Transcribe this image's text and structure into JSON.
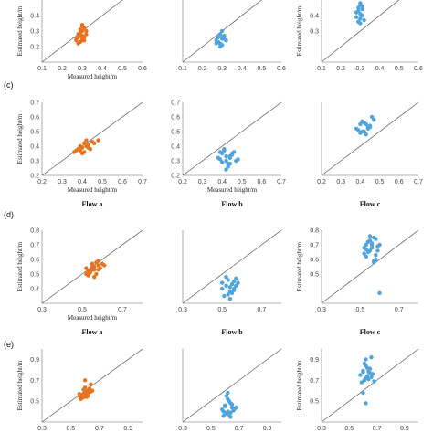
{
  "colors": {
    "flow_a": "#E8731E",
    "flow_b": "#4FA3DE",
    "flow_c": "#4FA3DE",
    "line": "#555555",
    "axis": "#9a9a9a"
  },
  "rows": [
    {
      "label": "",
      "show_flow_labels": false
    },
    {
      "label": "(c)",
      "show_flow_labels": true
    },
    {
      "label": "(d)",
      "show_flow_labels": true
    },
    {
      "label": "(e)",
      "show_flow_labels": false
    }
  ],
  "axis_text": {
    "xlabel": "Measured height/m",
    "ylabel": "Estimated height/m"
  },
  "flow_labels": [
    "Flow a",
    "Flow b",
    "Flow c"
  ],
  "chart_data": [
    {
      "type": "scatter",
      "row": 0,
      "col": 0,
      "xlim": [
        0.1,
        0.6
      ],
      "ylim": [
        0.1,
        0.5
      ],
      "xticks": [
        "0.1",
        "0.2",
        "0.3",
        "0.4",
        "0.5",
        "0.6"
      ],
      "yticks": [
        "0.2",
        "0.3",
        "0.4"
      ],
      "show_xlabel": true,
      "show_ylabel": true,
      "series": [
        {
          "color_key": "flow_a",
          "x": [
            0.27,
            0.28,
            0.29,
            0.3,
            0.31,
            0.3,
            0.28,
            0.29,
            0.32,
            0.3,
            0.27,
            0.31,
            0.29,
            0.3,
            0.28,
            0.32,
            0.3,
            0.29,
            0.31,
            0.3
          ],
          "y": [
            0.25,
            0.26,
            0.27,
            0.3,
            0.32,
            0.24,
            0.22,
            0.29,
            0.28,
            0.33,
            0.24,
            0.26,
            0.23,
            0.27,
            0.28,
            0.3,
            0.25,
            0.31,
            0.24,
            0.34
          ]
        }
      ]
    },
    {
      "type": "scatter",
      "row": 0,
      "col": 1,
      "xlim": [
        0.1,
        0.6
      ],
      "ylim": [
        0.1,
        0.5
      ],
      "xticks": [
        "0.1",
        "0.2",
        "0.3",
        "0.4",
        "0.5",
        "0.6"
      ],
      "yticks": [],
      "show_xlabel": false,
      "show_ylabel": false,
      "series": [
        {
          "color_key": "flow_b",
          "x": [
            0.27,
            0.28,
            0.29,
            0.3,
            0.31,
            0.3,
            0.28,
            0.29,
            0.32,
            0.3,
            0.27,
            0.31,
            0.29,
            0.3
          ],
          "y": [
            0.24,
            0.26,
            0.22,
            0.25,
            0.27,
            0.21,
            0.23,
            0.28,
            0.24,
            0.3,
            0.22,
            0.25,
            0.2,
            0.26
          ]
        }
      ]
    },
    {
      "type": "scatter",
      "row": 0,
      "col": 2,
      "xlim": [
        0.1,
        0.6
      ],
      "ylim": [
        0.1,
        0.5
      ],
      "xticks": [
        "0.1",
        "0.2",
        "0.3",
        "0.4",
        "0.5",
        "0.6"
      ],
      "yticks": [
        "0.3",
        "0.4"
      ],
      "show_xlabel": false,
      "show_ylabel": true,
      "series": [
        {
          "color_key": "flow_c",
          "x": [
            0.28,
            0.29,
            0.3,
            0.31,
            0.3,
            0.29,
            0.31,
            0.3,
            0.28,
            0.3,
            0.29,
            0.31,
            0.3,
            0.32
          ],
          "y": [
            0.42,
            0.45,
            0.47,
            0.4,
            0.38,
            0.36,
            0.44,
            0.48,
            0.39,
            0.35,
            0.43,
            0.46,
            0.41,
            0.37
          ]
        }
      ]
    },
    {
      "type": "scatter",
      "row": 1,
      "col": 0,
      "xlim": [
        0.2,
        0.7
      ],
      "ylim": [
        0.2,
        0.7
      ],
      "xticks": [
        "0.2",
        "0.3",
        "0.4",
        "0.5",
        "0.6",
        "0.7"
      ],
      "yticks": [
        "0.2",
        "0.3",
        "0.4",
        "0.5",
        "0.6",
        "0.7"
      ],
      "show_xlabel": true,
      "show_ylabel": true,
      "series": [
        {
          "color_key": "flow_a",
          "x": [
            0.36,
            0.38,
            0.4,
            0.42,
            0.41,
            0.39,
            0.43,
            0.45,
            0.44,
            0.4,
            0.37,
            0.42,
            0.46,
            0.48,
            0.41,
            0.39,
            0.43
          ],
          "y": [
            0.36,
            0.38,
            0.39,
            0.4,
            0.42,
            0.37,
            0.41,
            0.43,
            0.38,
            0.35,
            0.37,
            0.44,
            0.42,
            0.44,
            0.36,
            0.4,
            0.39
          ]
        }
      ]
    },
    {
      "type": "scatter",
      "row": 1,
      "col": 1,
      "xlim": [
        0.2,
        0.7
      ],
      "ylim": [
        0.2,
        0.7
      ],
      "xticks": [
        "0.2",
        "0.3",
        "0.4",
        "0.5",
        "0.6",
        "0.7"
      ],
      "yticks": [
        "0.2",
        "0.3",
        "0.4",
        "0.5",
        "0.6",
        "0.7"
      ],
      "show_xlabel": true,
      "show_ylabel": false,
      "series": [
        {
          "color_key": "flow_b",
          "x": [
            0.38,
            0.4,
            0.42,
            0.44,
            0.41,
            0.43,
            0.45,
            0.39,
            0.42,
            0.46,
            0.4,
            0.44,
            0.47,
            0.41,
            0.43,
            0.45,
            0.42,
            0.39,
            0.48,
            0.44
          ],
          "y": [
            0.32,
            0.35,
            0.3,
            0.33,
            0.37,
            0.28,
            0.34,
            0.31,
            0.24,
            0.36,
            0.29,
            0.32,
            0.3,
            0.38,
            0.26,
            0.35,
            0.33,
            0.36,
            0.31,
            0.28
          ]
        }
      ]
    },
    {
      "type": "scatter",
      "row": 1,
      "col": 2,
      "xlim": [
        0.2,
        0.7
      ],
      "ylim": [
        0.2,
        0.7
      ],
      "xticks": [
        "0.2",
        "0.3",
        "0.4",
        "0.5",
        "0.6",
        "0.7"
      ],
      "yticks": [],
      "show_xlabel": false,
      "show_ylabel": false,
      "series": [
        {
          "color_key": "flow_c",
          "x": [
            0.38,
            0.4,
            0.42,
            0.44,
            0.41,
            0.43,
            0.45,
            0.39,
            0.42,
            0.46,
            0.4,
            0.44,
            0.47,
            0.41,
            0.43,
            0.45
          ],
          "y": [
            0.52,
            0.55,
            0.5,
            0.53,
            0.57,
            0.48,
            0.54,
            0.51,
            0.56,
            0.6,
            0.49,
            0.52,
            0.58,
            0.5,
            0.55,
            0.53
          ]
        }
      ]
    },
    {
      "type": "scatter",
      "row": 2,
      "col": 0,
      "xlim": [
        0.3,
        0.8
      ],
      "ylim": [
        0.3,
        0.8
      ],
      "xticks": [
        "0.3",
        "0.5",
        "0.7"
      ],
      "yticks": [
        "0.4",
        "0.5",
        "0.6",
        "0.7",
        "0.8"
      ],
      "show_xlabel": true,
      "show_ylabel": true,
      "series": [
        {
          "color_key": "flow_a",
          "x": [
            0.52,
            0.54,
            0.56,
            0.58,
            0.55,
            0.53,
            0.57,
            0.59,
            0.6,
            0.54,
            0.56,
            0.58,
            0.55,
            0.53,
            0.57,
            0.61,
            0.52,
            0.55,
            0.58,
            0.56
          ],
          "y": [
            0.5,
            0.52,
            0.55,
            0.56,
            0.53,
            0.49,
            0.58,
            0.54,
            0.57,
            0.51,
            0.48,
            0.53,
            0.55,
            0.52,
            0.5,
            0.56,
            0.54,
            0.57,
            0.59,
            0.53
          ]
        }
      ]
    },
    {
      "type": "scatter",
      "row": 2,
      "col": 1,
      "xlim": [
        0.3,
        0.8
      ],
      "ylim": [
        0.3,
        0.8
      ],
      "xticks": [
        "0.3",
        "0.5",
        "0.7"
      ],
      "yticks": [],
      "show_xlabel": false,
      "show_ylabel": false,
      "series": [
        {
          "color_key": "flow_b",
          "x": [
            0.5,
            0.52,
            0.54,
            0.56,
            0.53,
            0.55,
            0.57,
            0.51,
            0.54,
            0.58,
            0.52,
            0.56,
            0.55,
            0.53,
            0.57,
            0.54,
            0.5,
            0.56
          ],
          "y": [
            0.4,
            0.42,
            0.38,
            0.45,
            0.36,
            0.43,
            0.47,
            0.35,
            0.41,
            0.44,
            0.48,
            0.39,
            0.37,
            0.46,
            0.42,
            0.33,
            0.44,
            0.4
          ]
        }
      ]
    },
    {
      "type": "scatter",
      "row": 2,
      "col": 2,
      "xlim": [
        0.3,
        0.8
      ],
      "ylim": [
        0.3,
        0.8
      ],
      "xticks": [
        "0.3",
        "0.5",
        "0.7"
      ],
      "yticks": [
        "0.5",
        "0.6",
        "0.7",
        "0.8"
      ],
      "show_xlabel": false,
      "show_ylabel": true,
      "series": [
        {
          "color_key": "flow_c",
          "x": [
            0.52,
            0.54,
            0.56,
            0.58,
            0.55,
            0.53,
            0.57,
            0.59,
            0.54,
            0.56,
            0.58,
            0.55,
            0.53,
            0.57,
            0.6,
            0.52,
            0.55,
            0.58,
            0.56,
            0.54,
            0.57,
            0.59,
            0.53,
            0.6
          ],
          "y": [
            0.68,
            0.72,
            0.7,
            0.74,
            0.66,
            0.62,
            0.75,
            0.69,
            0.65,
            0.71,
            0.6,
            0.73,
            0.67,
            0.58,
            0.7,
            0.64,
            0.76,
            0.63,
            0.68,
            0.72,
            0.59,
            0.66,
            0.7,
            0.37
          ]
        }
      ]
    },
    {
      "type": "scatter",
      "row": 3,
      "col": 0,
      "xlim": [
        0.3,
        1.0
      ],
      "ylim": [
        0.3,
        1.0
      ],
      "xticks": [
        "0.3",
        "0.5",
        "0.7",
        "0.9"
      ],
      "yticks": [
        "0.5",
        "0.7",
        "0.9"
      ],
      "show_xlabel": false,
      "show_ylabel": true,
      "series": [
        {
          "color_key": "flow_a",
          "x": [
            0.56,
            0.58,
            0.6,
            0.62,
            0.59,
            0.57,
            0.61,
            0.63,
            0.64,
            0.58,
            0.6,
            0.62,
            0.59,
            0.57,
            0.61,
            0.65,
            0.56,
            0.6,
            0.62,
            0.64,
            0.6
          ],
          "y": [
            0.55,
            0.56,
            0.58,
            0.6,
            0.54,
            0.52,
            0.57,
            0.62,
            0.59,
            0.53,
            0.55,
            0.58,
            0.61,
            0.56,
            0.54,
            0.6,
            0.57,
            0.63,
            0.55,
            0.66,
            0.7
          ]
        }
      ]
    },
    {
      "type": "scatter",
      "row": 3,
      "col": 1,
      "xlim": [
        0.3,
        1.0
      ],
      "ylim": [
        0.3,
        1.0
      ],
      "xticks": [
        "0.3",
        "0.5",
        "0.7",
        "0.9"
      ],
      "yticks": [],
      "show_xlabel": false,
      "show_ylabel": false,
      "series": [
        {
          "color_key": "flow_b",
          "x": [
            0.58,
            0.6,
            0.62,
            0.64,
            0.61,
            0.63,
            0.65,
            0.59,
            0.62,
            0.66,
            0.6,
            0.64,
            0.67,
            0.61,
            0.63,
            0.65,
            0.62,
            0.59,
            0.68,
            0.64
          ],
          "y": [
            0.42,
            0.45,
            0.4,
            0.48,
            0.38,
            0.5,
            0.44,
            0.36,
            0.52,
            0.41,
            0.46,
            0.39,
            0.43,
            0.55,
            0.37,
            0.47,
            0.58,
            0.4,
            0.44,
            0.35
          ]
        }
      ]
    },
    {
      "type": "scatter",
      "row": 3,
      "col": 2,
      "xlim": [
        0.3,
        1.0
      ],
      "ylim": [
        0.3,
        1.0
      ],
      "xticks": [
        "0.3",
        "0.5",
        "0.7",
        "0.9"
      ],
      "yticks": [
        "0.5",
        "0.7",
        "0.9"
      ],
      "show_xlabel": false,
      "show_ylabel": true,
      "series": [
        {
          "color_key": "flow_c",
          "x": [
            0.58,
            0.6,
            0.62,
            0.64,
            0.61,
            0.63,
            0.65,
            0.59,
            0.62,
            0.66,
            0.6,
            0.64,
            0.67,
            0.61,
            0.63,
            0.65,
            0.62,
            0.68,
            0.64,
            0.66,
            0.6,
            0.62
          ],
          "y": [
            0.75,
            0.78,
            0.72,
            0.8,
            0.7,
            0.82,
            0.77,
            0.68,
            0.84,
            0.73,
            0.79,
            0.71,
            0.76,
            0.86,
            0.74,
            0.81,
            0.9,
            0.69,
            0.78,
            0.92,
            0.58,
            0.48
          ]
        }
      ]
    }
  ]
}
